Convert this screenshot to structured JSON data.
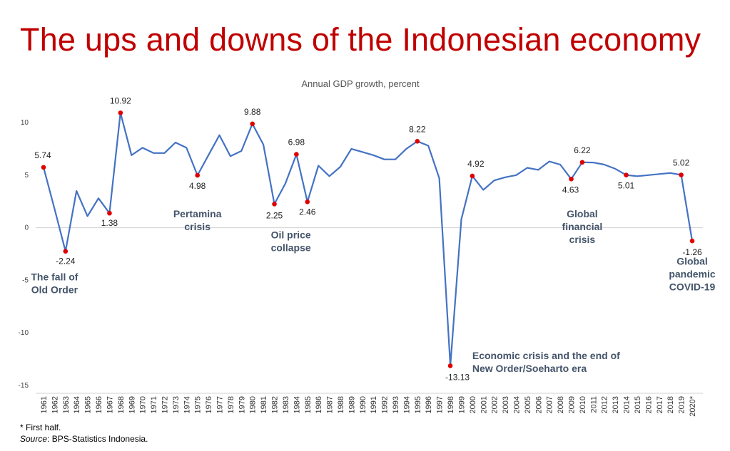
{
  "title": "The ups and downs of the Indonesian economy",
  "footnote": {
    "first_half": "* First half.",
    "source_label": "Source",
    "source_text": ": BPS-Statistics Indonesia."
  },
  "colors": {
    "title": "#c00000",
    "line": "#4472c4",
    "marker": "#e00000",
    "annotation": "#44546a"
  },
  "chart_data": {
    "type": "line",
    "title": "Annual GDP growth, percent",
    "xlabel": "",
    "ylabel": "",
    "ylim": [
      -15,
      12
    ],
    "yticks": [
      10,
      5,
      0,
      -5,
      -10,
      -15
    ],
    "grid": false,
    "x": [
      "1961",
      "1962",
      "1963",
      "1964",
      "1965",
      "1966",
      "1967",
      "1968",
      "1969",
      "1970",
      "1971",
      "1972",
      "1973",
      "1974",
      "1975",
      "1976",
      "1977",
      "1978",
      "1979",
      "1980",
      "1981",
      "1982",
      "1983",
      "1984",
      "1985",
      "1986",
      "1987",
      "1988",
      "1989",
      "1990",
      "1991",
      "1992",
      "1993",
      "1994",
      "1995",
      "1996",
      "1997",
      "1998",
      "1999",
      "2000",
      "2001",
      "2002",
      "2003",
      "2004",
      "2005",
      "2006",
      "2007",
      "2008",
      "2009",
      "2010",
      "2011",
      "2012",
      "2013",
      "2014",
      "2015",
      "2016",
      "2017",
      "2018",
      "2019",
      "2020*"
    ],
    "series": [
      {
        "values": [
          5.74,
          1.8,
          -2.24,
          3.5,
          1.1,
          2.8,
          1.38,
          10.92,
          6.9,
          7.6,
          7.1,
          7.1,
          8.1,
          7.6,
          4.98,
          6.9,
          8.8,
          6.8,
          7.3,
          9.88,
          7.9,
          2.25,
          4.2,
          6.98,
          2.46,
          5.9,
          4.9,
          5.8,
          7.5,
          7.2,
          6.9,
          6.5,
          6.5,
          7.5,
          8.22,
          7.8,
          4.7,
          -13.13,
          0.8,
          4.92,
          3.6,
          4.5,
          4.8,
          5.0,
          5.7,
          5.5,
          6.3,
          6.0,
          4.63,
          6.22,
          6.2,
          6.0,
          5.6,
          5.01,
          4.9,
          5.0,
          5.1,
          5.2,
          5.02,
          -1.26
        ]
      }
    ],
    "highlights": [
      {
        "x": "1961",
        "y": 5.74,
        "label": "5.74",
        "lx": -1,
        "ly": -13
      },
      {
        "x": "1963",
        "y": -2.24,
        "label": "-2.24",
        "lx": 0,
        "ly": 18
      },
      {
        "x": "1967",
        "y": 1.38,
        "label": "1.38",
        "lx": 0,
        "ly": 18
      },
      {
        "x": "1968",
        "y": 10.92,
        "label": "10.92",
        "lx": 0,
        "ly": -13
      },
      {
        "x": "1975",
        "y": 4.98,
        "label": "4.98",
        "lx": 0,
        "ly": 19
      },
      {
        "x": "1980",
        "y": 9.88,
        "label": "9.88",
        "lx": 0,
        "ly": -13
      },
      {
        "x": "1982",
        "y": 2.25,
        "label": "2.25",
        "lx": 0,
        "ly": 20
      },
      {
        "x": "1984",
        "y": 6.98,
        "label": "6.98",
        "lx": 0,
        "ly": -13
      },
      {
        "x": "1985",
        "y": 2.46,
        "label": "2.46",
        "lx": 0,
        "ly": 18
      },
      {
        "x": "1995",
        "y": 8.22,
        "label": "8.22",
        "lx": 0,
        "ly": -13
      },
      {
        "x": "1998",
        "y": -13.13,
        "label": "-13.13",
        "lx": 10,
        "ly": 20
      },
      {
        "x": "2000",
        "y": 4.92,
        "label": "4.92",
        "lx": 5,
        "ly": -13
      },
      {
        "x": "2009",
        "y": 4.63,
        "label": "4.63",
        "lx": -1,
        "ly": 19
      },
      {
        "x": "2010",
        "y": 6.22,
        "label": "6.22",
        "lx": 0,
        "ly": -13
      },
      {
        "x": "2014",
        "y": 5.01,
        "label": "5.01",
        "lx": 0,
        "ly": 19
      },
      {
        "x": "2019",
        "y": 5.02,
        "label": "5.02",
        "lx": 0,
        "ly": -13
      },
      {
        "x": "2020*",
        "y": -1.26,
        "label": "-1.26",
        "lx": 0,
        "ly": 20
      }
    ],
    "annotations": [
      {
        "lines": [
          "The fall of",
          "Old Order"
        ],
        "ax": "1962",
        "ay": -5.0,
        "anchor": "middle"
      },
      {
        "lines": [
          "Pertamina",
          "crisis"
        ],
        "ax": "1975",
        "ay": 1.0,
        "anchor": "middle"
      },
      {
        "lines": [
          "Oil price",
          "collapse"
        ],
        "ax": "1983.5",
        "ay": -1.0,
        "anchor": "middle"
      },
      {
        "lines": [
          "Global",
          "financial",
          "crisis"
        ],
        "ax": "2010",
        "ay": 1.0,
        "anchor": "middle"
      },
      {
        "lines": [
          "Global",
          "pandemic",
          "COVID-19"
        ],
        "ax": "2020*",
        "ay": -3.5,
        "anchor": "middle"
      },
      {
        "lines": [
          "Economic crisis and the end of",
          "New Order/Soeharto era"
        ],
        "ax": "2000",
        "ay": -12.5,
        "anchor": "start"
      }
    ]
  }
}
